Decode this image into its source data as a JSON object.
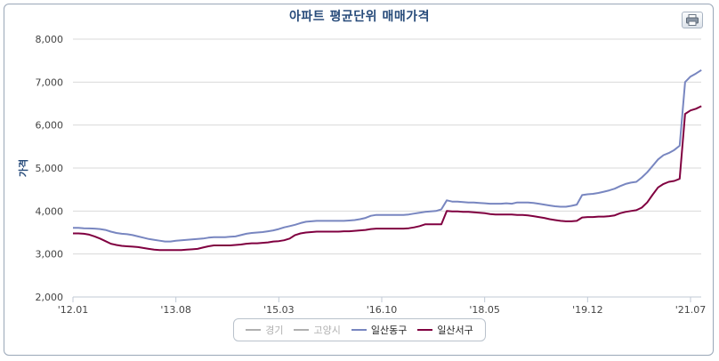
{
  "chart_data": {
    "type": "line",
    "title": "아파트 평균단위 매매가격",
    "ylabel": "가격",
    "xlabel": "",
    "ylim": [
      2000,
      8000
    ],
    "yticks": [
      "2,000",
      "3,000",
      "4,000",
      "5,000",
      "6,000",
      "7,000",
      "8,000"
    ],
    "xticks": [
      "'12.01",
      "'13.08",
      "'15.03",
      "'16.10",
      "'18.05",
      "'19.12",
      "'21.07"
    ],
    "x_start": "2012-01",
    "legend_position": "bottom-center",
    "grid": true,
    "series": [
      {
        "name": "경기",
        "visible": false,
        "color": "#b0b0b0",
        "values": []
      },
      {
        "name": "고양시",
        "visible": false,
        "color": "#b0b0b0",
        "values": []
      },
      {
        "name": "일산동구",
        "visible": true,
        "color": "#7886c0",
        "values": [
          3610,
          3610,
          3600,
          3595,
          3590,
          3580,
          3560,
          3520,
          3490,
          3470,
          3460,
          3440,
          3410,
          3380,
          3350,
          3330,
          3310,
          3290,
          3290,
          3310,
          3320,
          3330,
          3340,
          3350,
          3360,
          3380,
          3390,
          3390,
          3390,
          3400,
          3410,
          3440,
          3470,
          3490,
          3500,
          3510,
          3530,
          3550,
          3580,
          3620,
          3650,
          3680,
          3720,
          3750,
          3760,
          3770,
          3770,
          3770,
          3770,
          3770,
          3770,
          3780,
          3790,
          3810,
          3840,
          3890,
          3910,
          3910,
          3910,
          3910,
          3910,
          3910,
          3920,
          3940,
          3960,
          3980,
          3990,
          4000,
          4040,
          4250,
          4220,
          4220,
          4210,
          4200,
          4200,
          4190,
          4180,
          4170,
          4170,
          4170,
          4180,
          4170,
          4200,
          4200,
          4200,
          4190,
          4170,
          4150,
          4130,
          4110,
          4100,
          4100,
          4120,
          4150,
          4370,
          4390,
          4400,
          4420,
          4450,
          4480,
          4520,
          4580,
          4630,
          4660,
          4680,
          4780,
          4900,
          5050,
          5200,
          5300,
          5350,
          5420,
          5520,
          7000,
          7130,
          7200,
          7280
        ]
      },
      {
        "name": "일산서구",
        "visible": true,
        "color": "#800040",
        "values": [
          3480,
          3480,
          3470,
          3450,
          3410,
          3360,
          3300,
          3240,
          3210,
          3190,
          3180,
          3170,
          3160,
          3140,
          3120,
          3100,
          3090,
          3090,
          3090,
          3090,
          3090,
          3100,
          3110,
          3120,
          3150,
          3180,
          3200,
          3200,
          3200,
          3200,
          3210,
          3220,
          3240,
          3250,
          3250,
          3260,
          3270,
          3290,
          3300,
          3320,
          3360,
          3440,
          3480,
          3500,
          3510,
          3520,
          3520,
          3520,
          3520,
          3520,
          3530,
          3530,
          3540,
          3550,
          3560,
          3580,
          3590,
          3590,
          3590,
          3590,
          3590,
          3590,
          3600,
          3620,
          3650,
          3690,
          3690,
          3690,
          3690,
          4000,
          3990,
          3990,
          3980,
          3980,
          3970,
          3960,
          3950,
          3930,
          3920,
          3920,
          3920,
          3920,
          3910,
          3910,
          3900,
          3880,
          3860,
          3840,
          3810,
          3790,
          3770,
          3760,
          3760,
          3770,
          3850,
          3860,
          3860,
          3870,
          3870,
          3880,
          3900,
          3950,
          3980,
          4000,
          4020,
          4080,
          4200,
          4380,
          4550,
          4630,
          4680,
          4700,
          4750,
          6260,
          6340,
          6380,
          6440
        ]
      }
    ]
  },
  "legend": [
    {
      "label": "경기"
    },
    {
      "label": "고양시"
    },
    {
      "label": "일산동구"
    },
    {
      "label": "일산서구"
    }
  ]
}
